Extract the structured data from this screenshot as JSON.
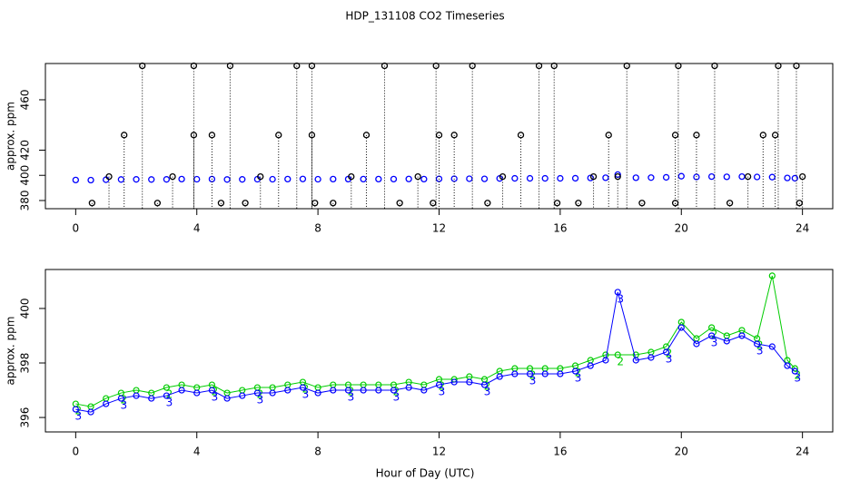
{
  "chart_data": [
    {
      "type": "scatter",
      "title": "HDP_131108  CO2 Timeseries",
      "ylabel": "approx. ppm",
      "xlim": [
        -1,
        25
      ],
      "ylim": [
        373.5,
        488.8
      ],
      "xticks": [
        0,
        4,
        8,
        12,
        16,
        20,
        24
      ],
      "yticks": [
        380,
        400,
        420,
        460
      ],
      "series": [
        {
          "color": "#0000ff",
          "drop_lines": false,
          "x": [
            0,
            0.5,
            1,
            1.5,
            2,
            2.5,
            3,
            3.5,
            4,
            4.5,
            5,
            5.5,
            6,
            6.5,
            7,
            7.5,
            8,
            8.5,
            9,
            9.5,
            10,
            10.5,
            11,
            11.5,
            12,
            12.5,
            13,
            13.5,
            14,
            14.5,
            15,
            15.5,
            16,
            16.5,
            17,
            17.5,
            17.9,
            18.5,
            19,
            19.5,
            20,
            20.5,
            21,
            21.5,
            22,
            22.5,
            23,
            23.5,
            23.75
          ],
          "values": [
            396.3,
            396.2,
            396.5,
            396.7,
            396.8,
            396.7,
            396.8,
            397.0,
            396.9,
            397.0,
            396.7,
            396.8,
            396.9,
            396.9,
            397.0,
            397.1,
            396.9,
            397.0,
            397.0,
            397.0,
            397.0,
            397.0,
            397.1,
            397.0,
            397.2,
            397.3,
            397.3,
            397.2,
            397.5,
            397.6,
            397.6,
            397.6,
            397.6,
            397.7,
            397.9,
            398.1,
            400.6,
            398.1,
            398.2,
            398.4,
            399.3,
            398.7,
            399.0,
            398.8,
            399.0,
            398.7,
            398.6,
            397.9,
            397.7
          ]
        },
        {
          "color": "#000000",
          "drop_lines": true,
          "x": [
            0.54,
            2.7,
            4.8,
            5.6,
            7.9,
            8.5,
            10.7,
            11.8,
            13.6,
            15.9,
            16.6,
            18.7,
            19.8,
            21.6,
            23.9,
            1.6,
            3.9,
            4.5,
            6.7,
            7.8,
            9.6,
            12.0,
            12.5,
            14.7,
            17.6,
            19.8,
            20.5,
            22.7,
            23.1,
            2.2,
            3.9,
            5.1,
            7.3,
            7.8,
            10.2,
            11.9,
            13.1,
            15.3,
            15.8,
            18.2,
            19.9,
            21.1,
            23.2,
            23.8,
            1.1,
            3.2,
            6.1,
            9.1,
            11.3,
            14.1,
            17.1,
            17.9,
            22.2,
            24.0
          ],
          "values": [
            378,
            378,
            378,
            378,
            378,
            378,
            378,
            378,
            378,
            378,
            378,
            378,
            378,
            378,
            378,
            432,
            432,
            432,
            432,
            432,
            432,
            432,
            432,
            432,
            432,
            432,
            432,
            432,
            432,
            487,
            487,
            487,
            487,
            487,
            487,
            487,
            487,
            487,
            487,
            487,
            487,
            487,
            487,
            487,
            399,
            399,
            399,
            399,
            399,
            399,
            399,
            399,
            399,
            399
          ]
        }
      ]
    },
    {
      "type": "line",
      "ylabel": "approx. ppm",
      "xlabel": "Hour of Day (UTC)",
      "xlim": [
        -1,
        25
      ],
      "ylim": [
        395.47,
        401.43
      ],
      "xticks": [
        0,
        4,
        8,
        12,
        16,
        20,
        24
      ],
      "yticks": [
        396,
        398,
        400
      ],
      "series": [
        {
          "name": "2",
          "color": "#00cc00",
          "x": [
            0,
            0.5,
            1,
            1.5,
            2,
            2.5,
            3,
            3.5,
            4,
            4.5,
            5,
            5.5,
            6,
            6.5,
            7,
            7.5,
            8,
            8.5,
            9,
            9.5,
            10,
            10.5,
            11,
            11.5,
            12,
            12.5,
            13,
            13.5,
            14,
            14.5,
            15,
            15.5,
            16,
            16.5,
            17,
            17.5,
            17.9,
            18.5,
            19,
            19.5,
            20,
            20.5,
            21,
            21.5,
            22,
            22.5,
            23,
            23.5,
            23.75
          ],
          "values": [
            396.5,
            396.4,
            396.7,
            396.9,
            397.0,
            396.9,
            397.1,
            397.2,
            397.1,
            397.2,
            396.9,
            397.0,
            397.1,
            397.1,
            397.2,
            397.3,
            397.1,
            397.2,
            397.2,
            397.2,
            397.2,
            397.2,
            397.3,
            397.2,
            397.4,
            397.4,
            397.5,
            397.4,
            397.7,
            397.8,
            397.8,
            397.8,
            397.8,
            397.9,
            398.1,
            398.3,
            398.3,
            398.3,
            398.4,
            398.6,
            399.5,
            398.9,
            399.3,
            399.0,
            399.2,
            398.9,
            401.2,
            398.1,
            397.8
          ]
        },
        {
          "name": "3",
          "color": "#0000ff",
          "x": [
            0,
            0.5,
            1,
            1.5,
            2,
            2.5,
            3,
            3.5,
            4,
            4.5,
            5,
            5.5,
            6,
            6.5,
            7,
            7.5,
            8,
            8.5,
            9,
            9.5,
            10,
            10.5,
            11,
            11.5,
            12,
            12.5,
            13,
            13.5,
            14,
            14.5,
            15,
            15.5,
            16,
            16.5,
            17,
            17.5,
            17.9,
            18.5,
            19,
            19.5,
            20,
            20.5,
            21,
            21.5,
            22,
            22.5,
            23,
            23.5,
            23.75
          ],
          "values": [
            396.3,
            396.2,
            396.5,
            396.7,
            396.8,
            396.7,
            396.8,
            397.0,
            396.9,
            397.0,
            396.7,
            396.8,
            396.9,
            396.9,
            397.0,
            397.1,
            396.9,
            397.0,
            397.0,
            397.0,
            397.0,
            397.0,
            397.1,
            397.0,
            397.2,
            397.3,
            397.3,
            397.2,
            397.5,
            397.6,
            397.6,
            397.6,
            397.6,
            397.7,
            397.9,
            398.1,
            400.6,
            398.1,
            398.2,
            398.4,
            399.3,
            398.7,
            399.0,
            398.8,
            399.0,
            398.7,
            398.6,
            397.9,
            397.7
          ]
        }
      ]
    }
  ]
}
